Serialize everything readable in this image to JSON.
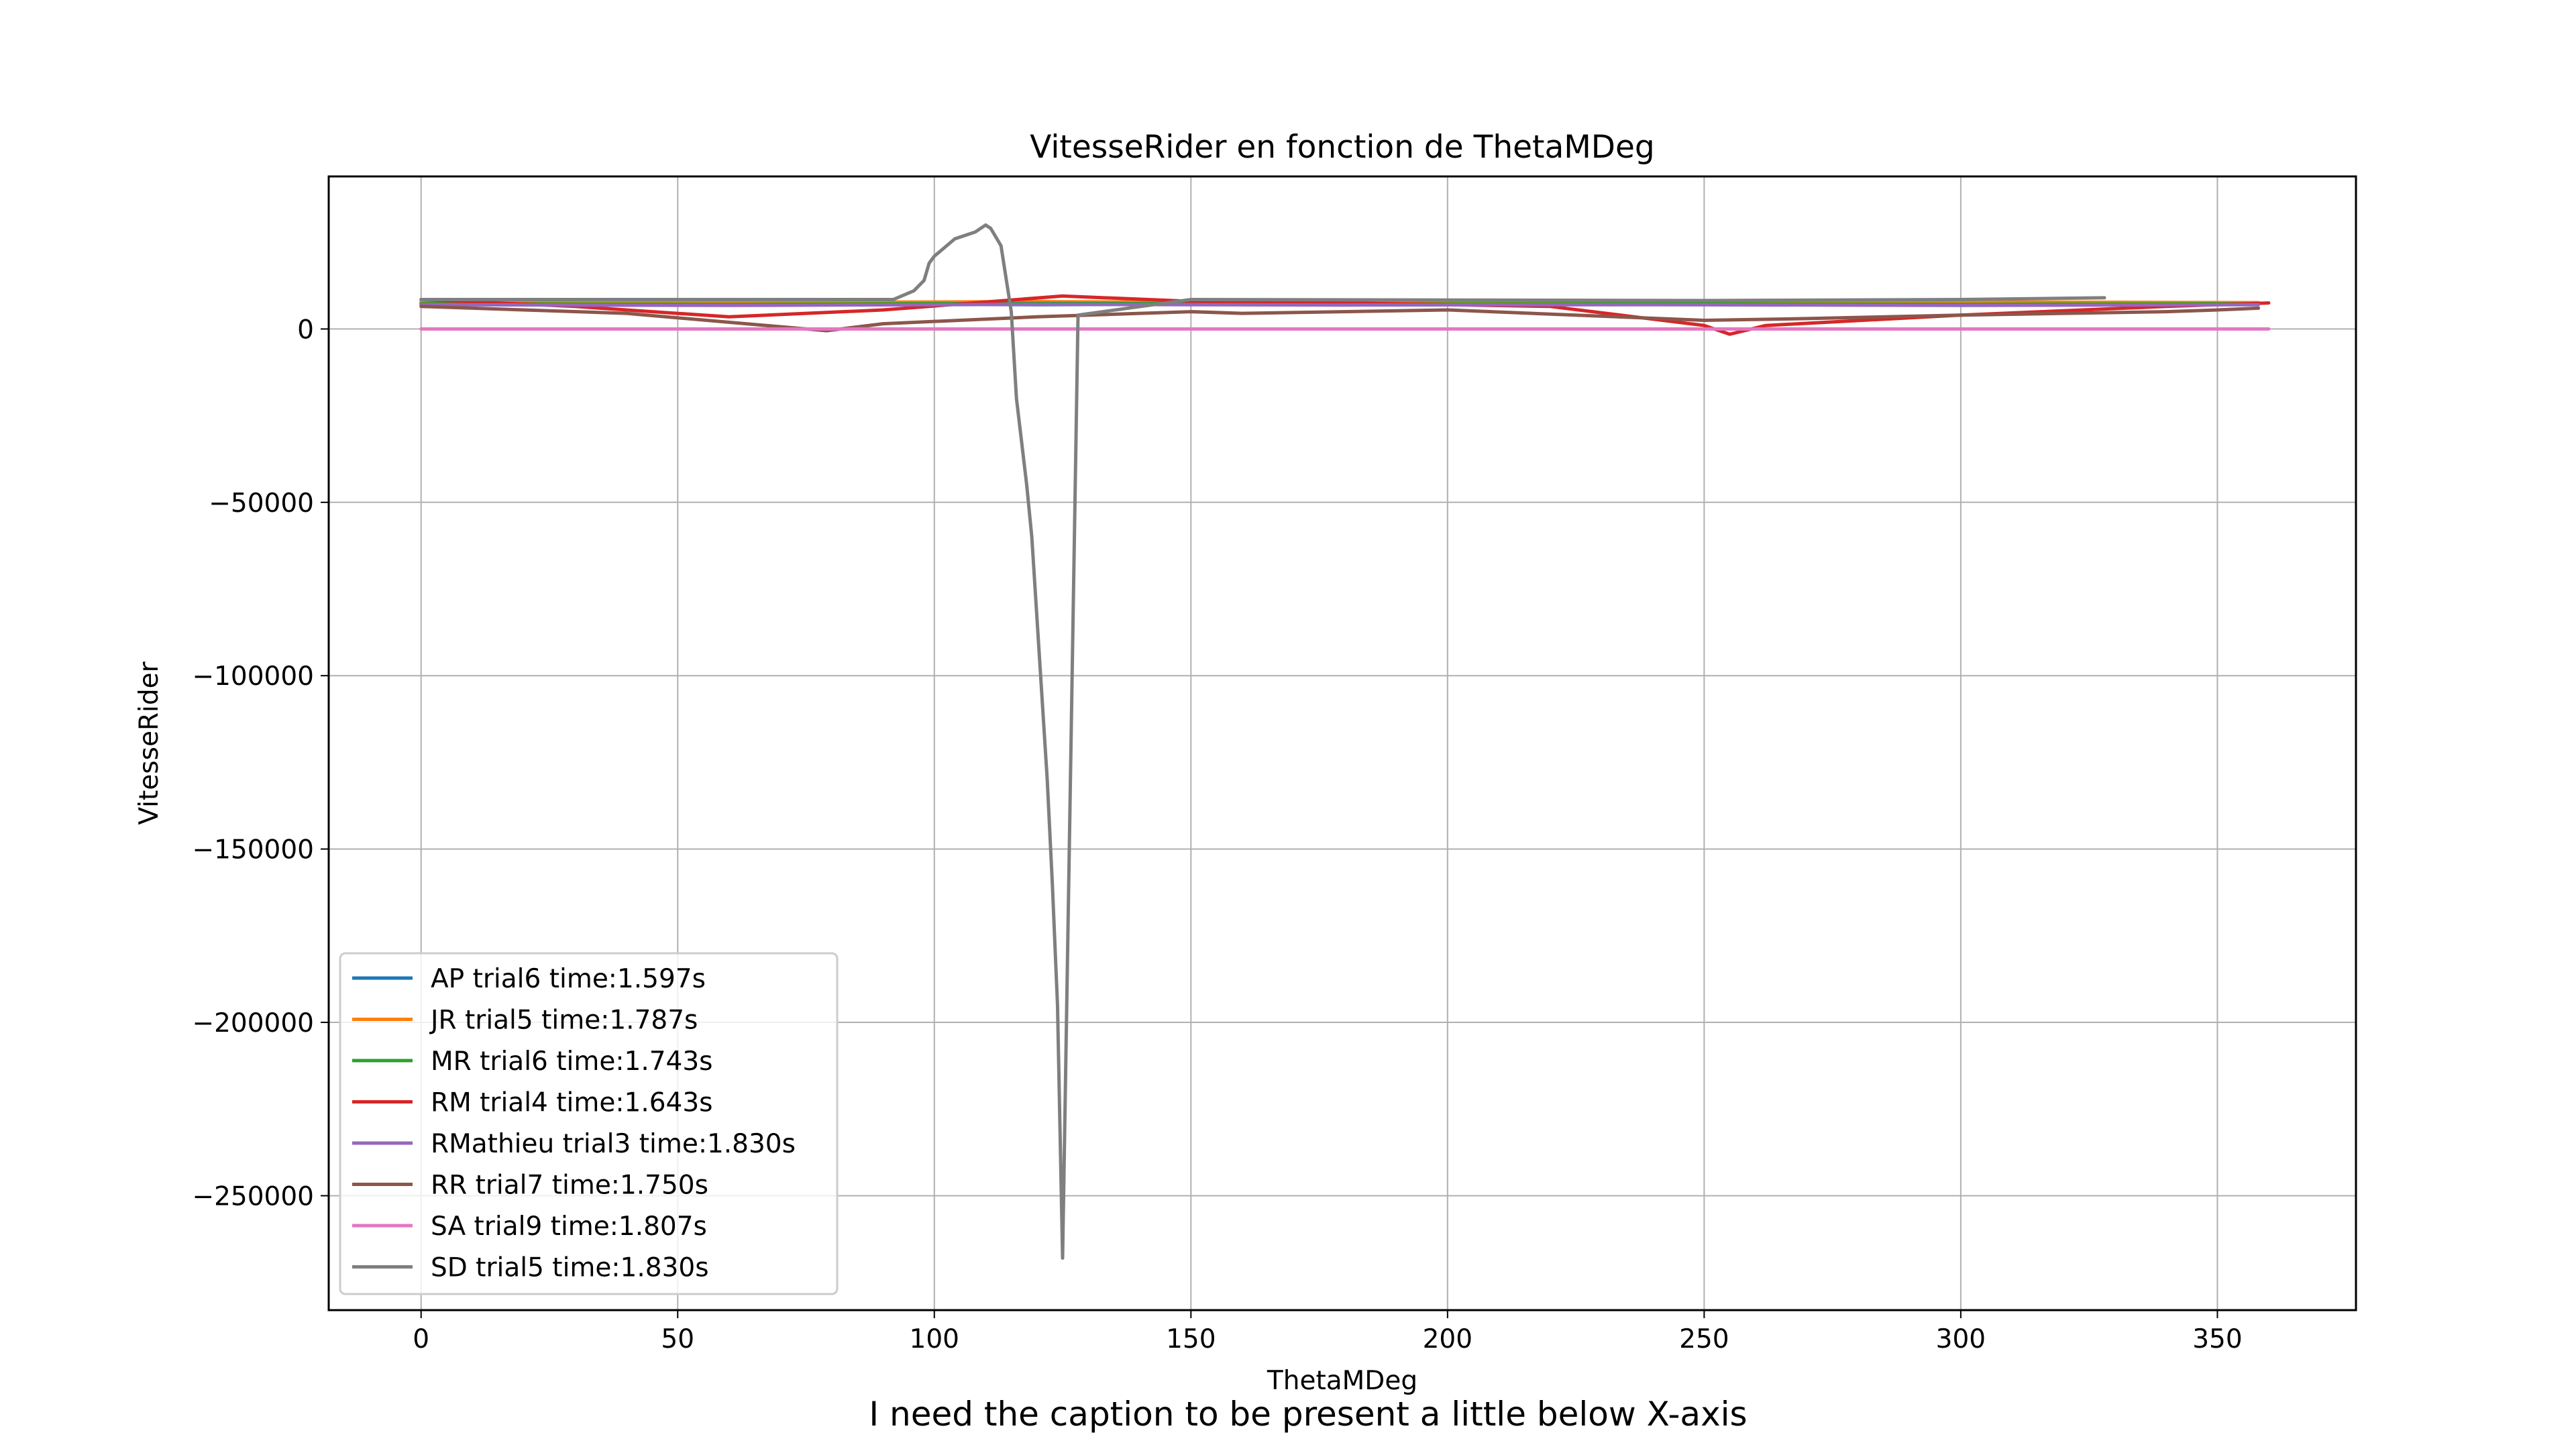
{
  "chart_data": {
    "type": "line",
    "title": "VitesseRider en fonction de ThetaMDeg",
    "xlabel": "ThetaMDeg",
    "ylabel": "VitesseRider",
    "xlim": [
      -18,
      377
    ],
    "ylim": [
      -283000,
      44000
    ],
    "xticks": [
      0,
      50,
      100,
      150,
      200,
      250,
      300,
      350
    ],
    "xtick_labels": [
      "0",
      "50",
      "100",
      "150",
      "200",
      "250",
      "300",
      "350"
    ],
    "yticks": [
      0,
      -50000,
      -100000,
      -150000,
      -200000,
      -250000
    ],
    "ytick_labels": [
      "0",
      "−50000",
      "−100000",
      "−150000",
      "−200000",
      "−250000"
    ],
    "grid": true,
    "legend_position": "lower-left",
    "series": [
      {
        "name": "AP trial6 time:1.597s",
        "color": "#1f77b4",
        "x": [
          0,
          60,
          120,
          180,
          240,
          300,
          358
        ],
        "y": [
          7500,
          7200,
          7000,
          7300,
          7100,
          7400,
          7200
        ]
      },
      {
        "name": "JR trial5 time:1.787s",
        "color": "#ff7f0e",
        "x": [
          0,
          60,
          120,
          180,
          240,
          300,
          358
        ],
        "y": [
          7800,
          7600,
          7900,
          7500,
          7700,
          7800,
          7600
        ]
      },
      {
        "name": "MR trial6 time:1.743s",
        "color": "#2ca02c",
        "x": [
          0,
          60,
          120,
          180,
          240,
          300,
          358
        ],
        "y": [
          7300,
          7100,
          7400,
          7200,
          7300,
          7100,
          7300
        ]
      },
      {
        "name": "RM trial4 time:1.643s",
        "color": "#d62728",
        "x": [
          0,
          30,
          60,
          90,
          125,
          150,
          180,
          220,
          250,
          255,
          262,
          300,
          340,
          360
        ],
        "y": [
          8500,
          6500,
          3500,
          5500,
          9500,
          8000,
          7500,
          6500,
          1000,
          -1500,
          1000,
          4000,
          6500,
          7500
        ]
      },
      {
        "name": "RMathieu trial3 time:1.830s",
        "color": "#9467bd",
        "x": [
          0,
          60,
          120,
          180,
          240,
          300,
          358
        ],
        "y": [
          7000,
          6800,
          7100,
          6900,
          7000,
          6800,
          7000
        ]
      },
      {
        "name": "RR trial7 time:1.750s",
        "color": "#8c564b",
        "x": [
          0,
          40,
          79,
          90,
          120,
          150,
          160,
          200,
          250,
          270,
          300,
          340,
          350,
          358
        ],
        "y": [
          6500,
          4500,
          -500,
          1500,
          3500,
          5000,
          4500,
          5500,
          2500,
          3000,
          4000,
          5000,
          5500,
          6000
        ]
      },
      {
        "name": "SA trial9 time:1.807s",
        "color": "#e377c2",
        "x": [
          0,
          60,
          120,
          180,
          240,
          300,
          360
        ],
        "y": [
          0,
          0,
          0,
          0,
          0,
          0,
          0
        ]
      },
      {
        "name": "SD trial5 time:1.830s",
        "color": "#7f7f7f",
        "x": [
          0,
          40,
          80,
          92,
          96,
          98,
          99,
          100,
          104,
          108,
          110,
          111,
          113,
          115,
          116,
          118,
          119,
          122,
          123,
          124,
          125,
          128,
          150,
          250,
          300,
          328
        ],
        "y": [
          8500,
          8500,
          8500,
          8500,
          11000,
          14000,
          19000,
          21000,
          26000,
          28000,
          30000,
          29000,
          24000,
          5000,
          -20000,
          -45000,
          -60000,
          -130000,
          -160000,
          -195000,
          -268000,
          4000,
          8500,
          8200,
          8500,
          9000
        ]
      }
    ]
  },
  "caption": "I need the caption to be present a little below X-axis"
}
